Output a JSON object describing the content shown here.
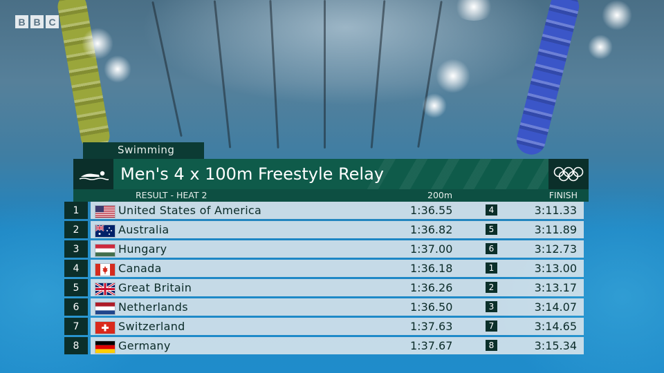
{
  "broadcaster": {
    "letters": [
      "B",
      "B",
      "C"
    ]
  },
  "sport": "Swimming",
  "event_title": "Men's 4 x 100m Freestyle Relay",
  "subheader": {
    "result": "RESULT - HEAT 2",
    "split_label": "200m",
    "finish_label": "FINISH"
  },
  "icons": {
    "sport": "swimmer-icon",
    "olympic": "olympic-rings-icon"
  },
  "colors": {
    "panel_dark": "#0b2f2a",
    "panel_green": "#0f5b4a",
    "row_bg": "#e1e8ec",
    "text_dark": "#0a2a27"
  },
  "results": [
    {
      "rank": "1",
      "flag": "usa-flag-icon",
      "country": "United States of America",
      "split": "1:36.55",
      "split_pos": "4",
      "finish": "3:11.33"
    },
    {
      "rank": "2",
      "flag": "australia-flag-icon",
      "country": "Australia",
      "split": "1:36.82",
      "split_pos": "5",
      "finish": "3:11.89"
    },
    {
      "rank": "3",
      "flag": "hungary-flag-icon",
      "country": "Hungary",
      "split": "1:37.00",
      "split_pos": "6",
      "finish": "3:12.73"
    },
    {
      "rank": "4",
      "flag": "canada-flag-icon",
      "country": "Canada",
      "split": "1:36.18",
      "split_pos": "1",
      "finish": "3:13.00"
    },
    {
      "rank": "5",
      "flag": "great-britain-flag-icon",
      "country": "Great Britain",
      "split": "1:36.26",
      "split_pos": "2",
      "finish": "3:13.17"
    },
    {
      "rank": "6",
      "flag": "netherlands-flag-icon",
      "country": "Netherlands",
      "split": "1:36.50",
      "split_pos": "3",
      "finish": "3:14.07"
    },
    {
      "rank": "7",
      "flag": "switzerland-flag-icon",
      "country": "Switzerland",
      "split": "1:37.63",
      "split_pos": "7",
      "finish": "3:14.65"
    },
    {
      "rank": "8",
      "flag": "germany-flag-icon",
      "country": "Germany",
      "split": "1:37.67",
      "split_pos": "8",
      "finish": "3:15.34"
    }
  ]
}
